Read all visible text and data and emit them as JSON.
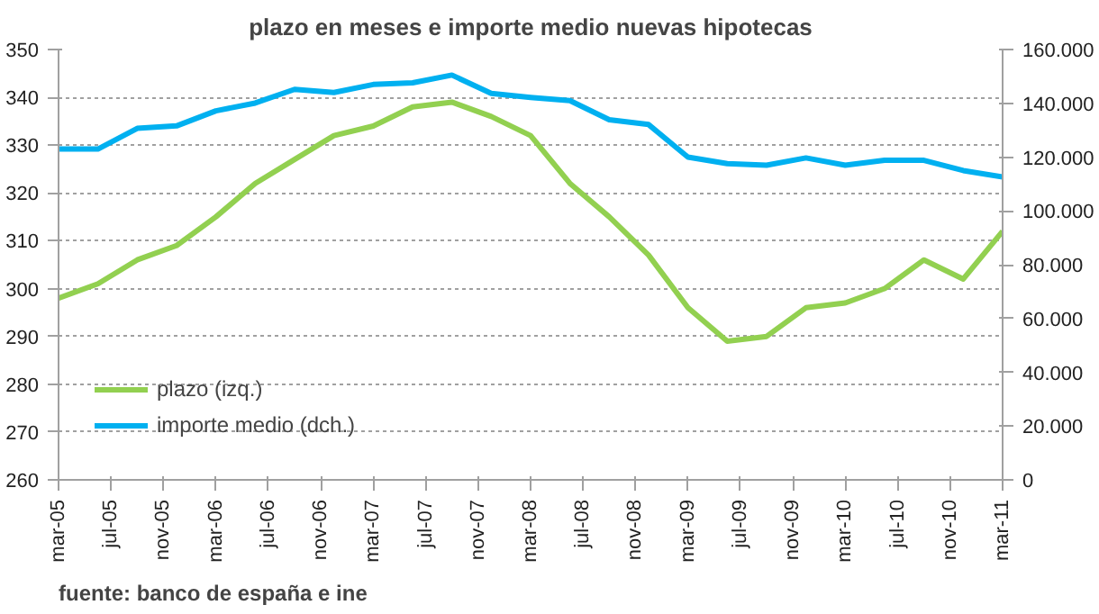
{
  "chart_data": {
    "type": "line",
    "title": "plazo en meses e importe medio nuevas hipotecas",
    "x": [
      "2005-03",
      "2005-06",
      "2005-09",
      "2005-12",
      "2006-03",
      "2006-06",
      "2006-09",
      "2006-12",
      "2007-03",
      "2007-06",
      "2007-09",
      "2007-12",
      "2008-03",
      "2008-06",
      "2008-09",
      "2008-12",
      "2009-03",
      "2009-06",
      "2009-09",
      "2009-12",
      "2010-03",
      "2010-06",
      "2010-09",
      "2010-12",
      "2011-03"
    ],
    "series": [
      {
        "name": "plazo (izq.)",
        "color": "#92d050",
        "values": [
          298,
          301,
          306,
          309,
          315,
          322,
          327,
          332,
          334,
          338,
          339,
          336,
          332,
          322,
          315,
          307,
          296,
          289,
          290,
          296,
          297,
          300,
          306,
          302,
          312
        ]
      },
      {
        "name": "importe medio (dch.)",
        "color": "#00b0f0",
        "axis": "y2",
        "values": [
          123000,
          123000,
          130700,
          131600,
          137200,
          140100,
          145200,
          144000,
          147000,
          147600,
          150500,
          143700,
          142200,
          141000,
          133900,
          132100,
          120000,
          117600,
          117000,
          119700,
          117000,
          118800,
          118800,
          115000,
          112600
        ]
      }
    ],
    "xlim": [
      "2005-03",
      "2011-03"
    ],
    "xticks": [
      {
        "value": "2005-03",
        "label": "mar-05"
      },
      {
        "value": "2005-07",
        "label": "jul-05"
      },
      {
        "value": "2005-11",
        "label": "nov-05"
      },
      {
        "value": "2006-03",
        "label": "mar-06"
      },
      {
        "value": "2006-07",
        "label": "jul-06"
      },
      {
        "value": "2006-11",
        "label": "nov-06"
      },
      {
        "value": "2007-03",
        "label": "mar-07"
      },
      {
        "value": "2007-07",
        "label": "jul-07"
      },
      {
        "value": "2007-11",
        "label": "nov-07"
      },
      {
        "value": "2008-03",
        "label": "mar-08"
      },
      {
        "value": "2008-07",
        "label": "jul-08"
      },
      {
        "value": "2008-11",
        "label": "nov-08"
      },
      {
        "value": "2009-03",
        "label": "mar-09"
      },
      {
        "value": "2009-07",
        "label": "jul-09"
      },
      {
        "value": "2009-11",
        "label": "nov-09"
      },
      {
        "value": "2010-03",
        "label": "mar-10"
      },
      {
        "value": "2010-07",
        "label": "jul-10"
      },
      {
        "value": "2010-11",
        "label": "nov-10"
      },
      {
        "value": "2011-03",
        "label": "mar-11"
      }
    ],
    "ylim": [
      260,
      350
    ],
    "yticks": [
      260,
      270,
      280,
      290,
      300,
      310,
      320,
      330,
      340,
      350
    ],
    "y2lim": [
      0,
      160000
    ],
    "y2ticks": [
      0,
      {
        "value": 20000,
        "label": "20.000"
      },
      {
        "value": 40000,
        "label": "40.000"
      },
      {
        "value": 60000,
        "label": "60.000"
      },
      {
        "value": 80000,
        "label": "80.000"
      },
      {
        "value": 100000,
        "label": "100.000"
      },
      {
        "value": 120000,
        "label": "120.000"
      },
      {
        "value": 140000,
        "label": "140.000"
      },
      {
        "value": 160000,
        "label": "160.000"
      }
    ],
    "grid": "y",
    "legend": "bottom left",
    "marker": "none",
    "line_style": "solid",
    "annotations": [
      "fuente: banco de españa e ine"
    ]
  }
}
